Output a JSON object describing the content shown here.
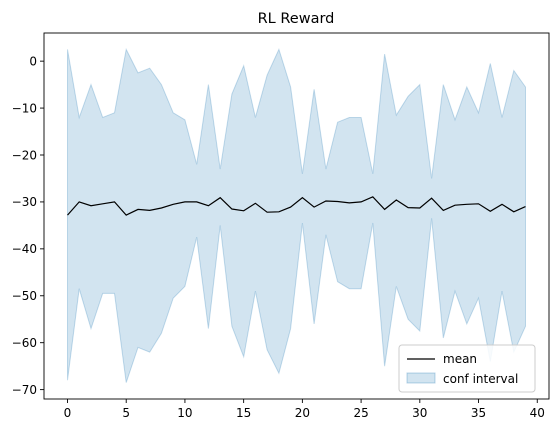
{
  "chart_data": {
    "type": "line",
    "title": "RL Reward",
    "xlabel": "",
    "ylabel": "",
    "xlim": [
      -2,
      41
    ],
    "ylim": [
      -72,
      6
    ],
    "x_ticks": [
      0,
      5,
      10,
      15,
      20,
      25,
      30,
      35,
      40
    ],
    "y_ticks": [
      0,
      -10,
      -20,
      -30,
      -40,
      -50,
      -60,
      -70
    ],
    "x": [
      0,
      1,
      2,
      3,
      4,
      5,
      6,
      7,
      8,
      9,
      10,
      11,
      12,
      13,
      14,
      15,
      16,
      17,
      18,
      19,
      20,
      21,
      22,
      23,
      24,
      25,
      26,
      27,
      28,
      29,
      30,
      31,
      32,
      33,
      34,
      35,
      36,
      37,
      38,
      39
    ],
    "series": [
      {
        "name": "mean",
        "color": "#000000",
        "values": [
          -32.8,
          -30.0,
          -30.8,
          -30.4,
          -30.0,
          -32.8,
          -31.6,
          -31.8,
          -31.3,
          -30.5,
          -30.0,
          -30.0,
          -30.8,
          -29.1,
          -31.5,
          -31.9,
          -30.3,
          -32.2,
          -32.1,
          -31.1,
          -29.1,
          -31.1,
          -29.8,
          -29.9,
          -30.2,
          -30.0,
          -28.9,
          -31.6,
          -29.6,
          -31.2,
          -31.3,
          -29.2,
          -31.8,
          -30.7,
          -30.5,
          -30.4,
          -32.0,
          -30.5,
          -32.1,
          -31.0
        ]
      },
      {
        "name": "conf interval",
        "type": "area",
        "color": "#1f77b4",
        "upper": [
          2.5,
          -12.0,
          -5.0,
          -12.0,
          -11.0,
          2.5,
          -2.5,
          -1.5,
          -5.0,
          -11.0,
          -12.5,
          -22.0,
          -5.0,
          -23.0,
          -7.0,
          -1.0,
          -12.0,
          -3.0,
          2.5,
          -5.5,
          -24.0,
          -6.0,
          -23.0,
          -13.0,
          -12.0,
          -12.0,
          -24.0,
          1.5,
          -11.5,
          -7.5,
          -5.0,
          -25.0,
          -5.0,
          -12.5,
          -5.5,
          -11.0,
          -0.5,
          -12.0,
          -2.0,
          -5.5
        ],
        "lower": [
          -68.0,
          -48.5,
          -57.0,
          -49.5,
          -49.5,
          -68.5,
          -61.0,
          -62.0,
          -58.0,
          -50.5,
          -48.0,
          -37.5,
          -57.0,
          -35.0,
          -56.5,
          -63.0,
          -49.0,
          -61.5,
          -66.5,
          -57.0,
          -34.5,
          -56.0,
          -37.0,
          -47.0,
          -48.5,
          -48.5,
          -34.5,
          -65.0,
          -48.0,
          -55.0,
          -57.5,
          -33.5,
          -59.0,
          -49.0,
          -56.0,
          -50.5,
          -64.0,
          -49.0,
          -62.0,
          -56.5
        ]
      }
    ],
    "legend": {
      "position": "lower-right",
      "entries": [
        "mean",
        "conf interval"
      ]
    },
    "grid": false
  }
}
